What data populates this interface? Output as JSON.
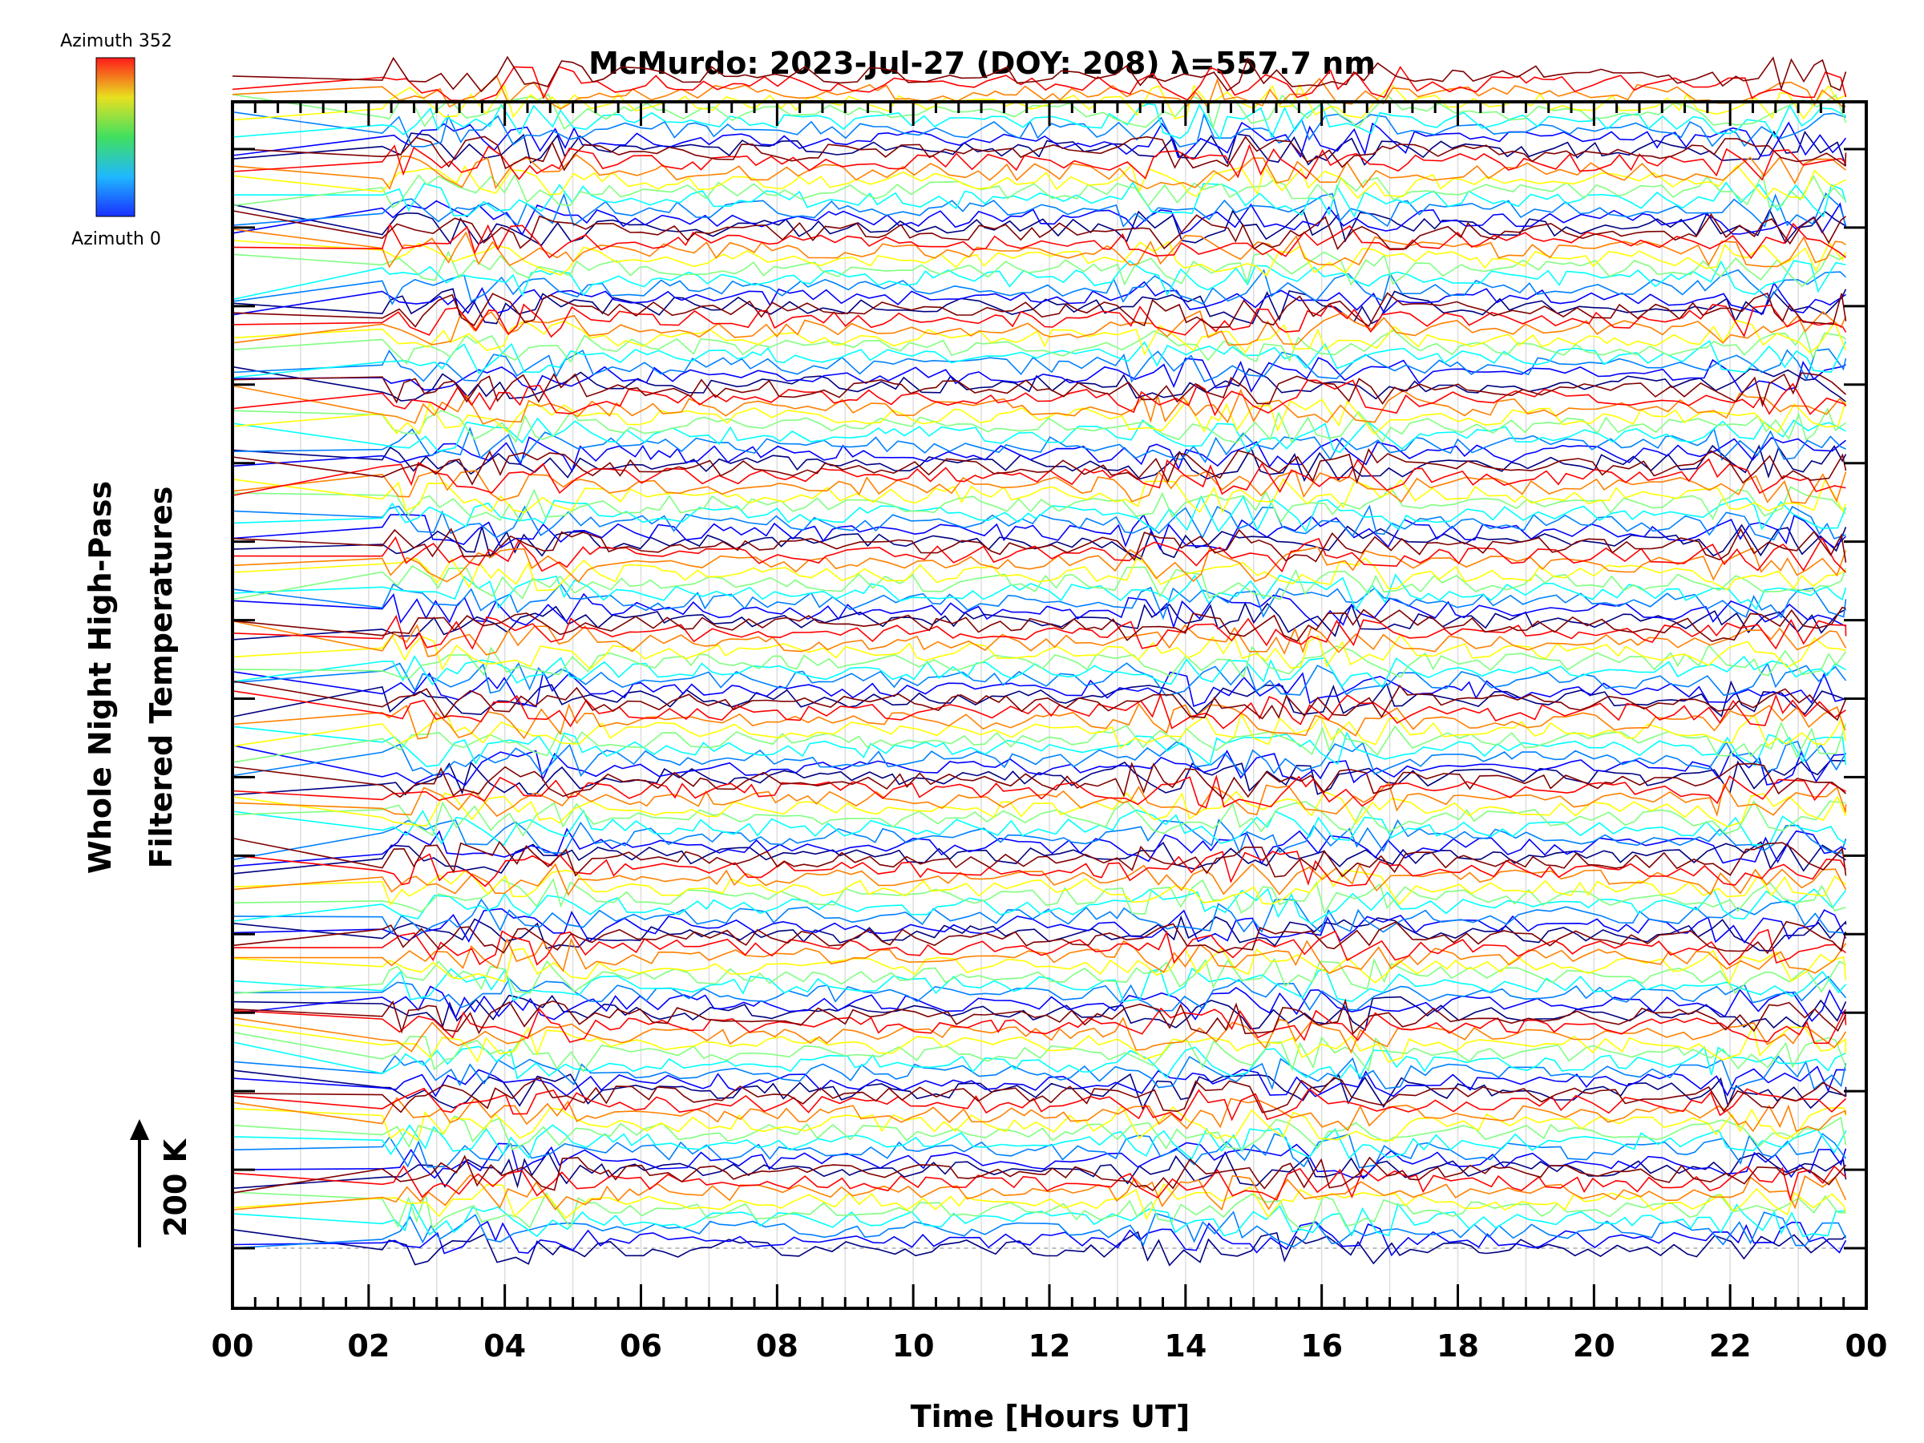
{
  "chart_data": {
    "type": "line",
    "title": "McMurdo: 2023-Jul-27 (DOY: 208) λ=557.7 nm",
    "xlabel": "Time [Hours UT]",
    "ylabel_lines": [
      "Whole Night High-Pass",
      "Filtered Temperatures"
    ],
    "scale_label": "200 K",
    "x_ticks": [
      "00",
      "02",
      "04",
      "06",
      "08",
      "10",
      "12",
      "14",
      "16",
      "18",
      "20",
      "22",
      "00"
    ],
    "xlim": [
      0,
      24
    ],
    "colorbar": {
      "max_label": "Azimuth 352",
      "min_label": "Azimuth 0",
      "azimuth_range": [
        0,
        352
      ]
    },
    "band_count": 15,
    "traces_per_band": 9,
    "series_note": "Stacked high-pass filtered temperature traces; each band of offset lines spans azimuth 0 (blue, bottom) to 352 (red, top)",
    "data_start_hour": 2.2,
    "data_end_hour": 23.7
  },
  "colors": {
    "frame": "#000000",
    "grid": "#dddddd",
    "baseline_dash": "#aaaaaa"
  }
}
